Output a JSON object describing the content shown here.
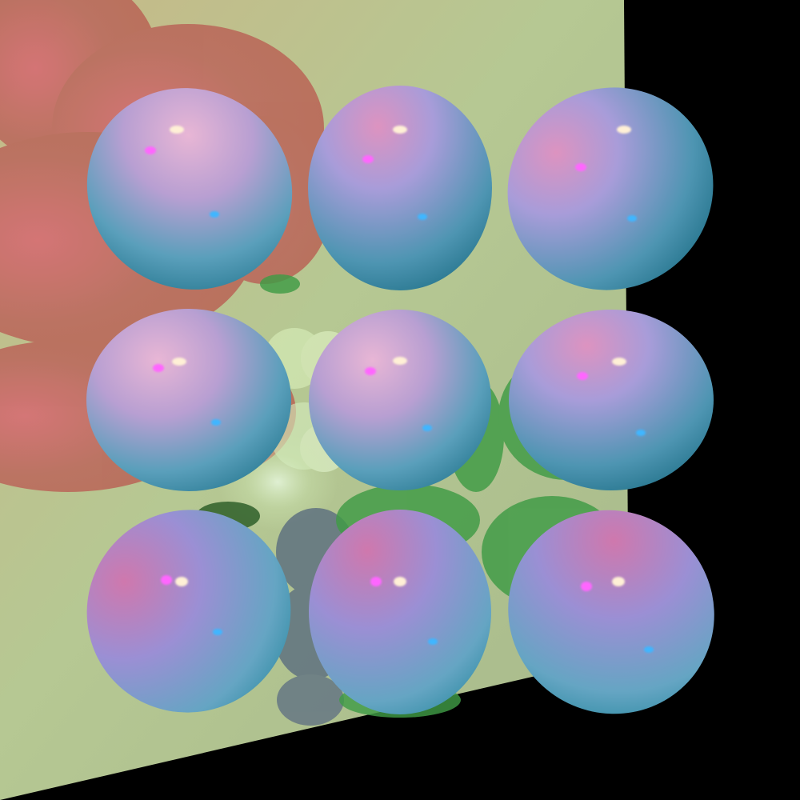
{
  "scene": {
    "background_color": "#000000",
    "plane_color": "#b6c893",
    "plane_tint_colors": [
      "#c7c79a",
      "#a8bf8c",
      "#9fb188"
    ],
    "shadow_colors": {
      "red": "#b96a58",
      "green": "#3f9b45",
      "blue": "#5f7280",
      "glow": "#cfe7b3"
    },
    "sphere_colors": {
      "top": "#d18bb5",
      "middle": "#8c9ed1",
      "bottom": "#1f7f8e",
      "specular_white": "#fff0d6",
      "specular_pink": "#ff66ff",
      "specular_blue": "#3fb6ff"
    },
    "grid": {
      "rows": 3,
      "columns": 3
    }
  }
}
